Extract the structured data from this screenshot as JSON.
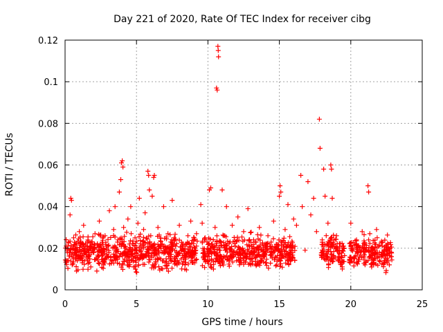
{
  "chart_data": {
    "type": "scatter",
    "title": "Day 221 of 2020, Rate Of TEC Index for receiver cibg",
    "xlabel": "GPS time / hours",
    "ylabel": "ROTI / TECUs",
    "xlim": [
      0,
      25
    ],
    "ylim": [
      0,
      0.12
    ],
    "x_ticks": [
      0,
      5,
      10,
      15,
      20,
      25
    ],
    "y_ticks": [
      0,
      0.02,
      0.04,
      0.06,
      0.08,
      0.1,
      0.12
    ],
    "x_tick_labels": [
      "0",
      "5",
      "10",
      "15",
      "20",
      "25"
    ],
    "y_tick_labels": [
      "0",
      "0.02",
      "0.04",
      "0.06",
      "0.08",
      "0.1",
      "0.12"
    ],
    "grid": true,
    "marker": "plus",
    "color": "#ff0000",
    "series": [
      {
        "points": [
          [
            0.1,
            0.014
          ],
          [
            0.2,
            0.021
          ],
          [
            0.3,
            0.018
          ],
          [
            0.35,
            0.036
          ],
          [
            0.4,
            0.044
          ],
          [
            0.45,
            0.043
          ],
          [
            0.5,
            0.012
          ],
          [
            0.6,
            0.025
          ],
          [
            0.7,
            0.019
          ],
          [
            0.8,
            0.009
          ],
          [
            0.9,
            0.016
          ],
          [
            1.0,
            0.028
          ],
          [
            1.1,
            0.022
          ],
          [
            1.2,
            0.013
          ],
          [
            1.3,
            0.031
          ],
          [
            1.5,
            0.017
          ],
          [
            1.6,
            0.024
          ],
          [
            1.8,
            0.011
          ],
          [
            2.0,
            0.02
          ],
          [
            2.1,
            0.027
          ],
          [
            2.2,
            0.015
          ],
          [
            2.4,
            0.033
          ],
          [
            2.5,
            0.018
          ],
          [
            2.7,
            0.012
          ],
          [
            2.8,
            0.026
          ],
          [
            3.0,
            0.021
          ],
          [
            3.1,
            0.038
          ],
          [
            3.2,
            0.016
          ],
          [
            3.4,
            0.029
          ],
          [
            3.5,
            0.04
          ],
          [
            3.6,
            0.019
          ],
          [
            3.7,
            0.024
          ],
          [
            3.8,
            0.047
          ],
          [
            3.9,
            0.053
          ],
          [
            3.95,
            0.061
          ],
          [
            4.0,
            0.062
          ],
          [
            4.05,
            0.059
          ],
          [
            4.1,
            0.03
          ],
          [
            4.2,
            0.02
          ],
          [
            4.3,
            0.014
          ],
          [
            4.4,
            0.034
          ],
          [
            4.5,
            0.022
          ],
          [
            4.6,
            0.04
          ],
          [
            4.7,
            0.017
          ],
          [
            4.8,
            0.011
          ],
          [
            4.9,
            0.025
          ],
          [
            5.0,
            0.019
          ],
          [
            5.1,
            0.032
          ],
          [
            5.2,
            0.044
          ],
          [
            5.3,
            0.021
          ],
          [
            5.4,
            0.015
          ],
          [
            5.5,
            0.029
          ],
          [
            5.6,
            0.037
          ],
          [
            5.8,
            0.057
          ],
          [
            5.85,
            0.055
          ],
          [
            5.9,
            0.048
          ],
          [
            6.0,
            0.026
          ],
          [
            6.1,
            0.045
          ],
          [
            6.2,
            0.054
          ],
          [
            6.25,
            0.055
          ],
          [
            6.3,
            0.018
          ],
          [
            6.5,
            0.03
          ],
          [
            6.7,
            0.021
          ],
          [
            6.9,
            0.04
          ],
          [
            7.0,
            0.013
          ],
          [
            7.2,
            0.027
          ],
          [
            7.4,
            0.019
          ],
          [
            7.5,
            0.043
          ],
          [
            7.6,
            0.024
          ],
          [
            7.8,
            0.016
          ],
          [
            8.0,
            0.031
          ],
          [
            8.2,
            0.021
          ],
          [
            8.4,
            0.012
          ],
          [
            8.6,
            0.026
          ],
          [
            8.8,
            0.033
          ],
          [
            9.0,
            0.018
          ],
          [
            9.2,
            0.027
          ],
          [
            9.5,
            0.041
          ],
          [
            9.6,
            0.032
          ],
          [
            9.7,
            0.019
          ],
          [
            9.8,
            0.025
          ],
          [
            10.0,
            0.016
          ],
          [
            10.1,
            0.048
          ],
          [
            10.2,
            0.049
          ],
          [
            10.3,
            0.022
          ],
          [
            10.5,
            0.03
          ],
          [
            10.6,
            0.097
          ],
          [
            10.65,
            0.096
          ],
          [
            10.7,
            0.117
          ],
          [
            10.72,
            0.115
          ],
          [
            10.74,
            0.112
          ],
          [
            10.8,
            0.019
          ],
          [
            11.0,
            0.048
          ],
          [
            11.1,
            0.026
          ],
          [
            11.3,
            0.04
          ],
          [
            11.5,
            0.014
          ],
          [
            11.7,
            0.031
          ],
          [
            11.9,
            0.021
          ],
          [
            12.1,
            0.035
          ],
          [
            12.3,
            0.017
          ],
          [
            12.5,
            0.028
          ],
          [
            12.8,
            0.039
          ],
          [
            13.0,
            0.012
          ],
          [
            13.2,
            0.024
          ],
          [
            13.4,
            0.019
          ],
          [
            13.6,
            0.03
          ],
          [
            13.8,
            0.015
          ],
          [
            14.0,
            0.022
          ],
          [
            14.2,
            0.026
          ],
          [
            14.4,
            0.018
          ],
          [
            14.6,
            0.033
          ],
          [
            14.8,
            0.02
          ],
          [
            15.0,
            0.045
          ],
          [
            15.05,
            0.05
          ],
          [
            15.1,
            0.047
          ],
          [
            15.2,
            0.016
          ],
          [
            15.4,
            0.029
          ],
          [
            15.6,
            0.041
          ],
          [
            15.8,
            0.021
          ],
          [
            16.0,
            0.034
          ],
          [
            16.2,
            0.031
          ],
          [
            16.5,
            0.055
          ],
          [
            16.6,
            0.04
          ],
          [
            16.8,
            0.019
          ],
          [
            17.0,
            0.052
          ],
          [
            17.2,
            0.036
          ],
          [
            17.4,
            0.044
          ],
          [
            17.6,
            0.028
          ],
          [
            17.8,
            0.082
          ],
          [
            17.85,
            0.068
          ],
          [
            18.0,
            0.024
          ],
          [
            18.1,
            0.058
          ],
          [
            18.2,
            0.045
          ],
          [
            18.4,
            0.032
          ],
          [
            18.6,
            0.06
          ],
          [
            18.65,
            0.058
          ],
          [
            18.7,
            0.044
          ],
          [
            18.8,
            0.016
          ],
          [
            19.0,
            0.026
          ],
          [
            19.2,
            0.019
          ],
          [
            19.4,
            0.011
          ],
          [
            20.0,
            0.032
          ],
          [
            20.2,
            0.015
          ],
          [
            20.4,
            0.024
          ],
          [
            20.6,
            0.02
          ],
          [
            20.8,
            0.028
          ],
          [
            21.0,
            0.012
          ],
          [
            21.2,
            0.05
          ],
          [
            21.25,
            0.047
          ],
          [
            21.5,
            0.018
          ],
          [
            21.8,
            0.029
          ],
          [
            22.0,
            0.014
          ],
          [
            22.2,
            0.021
          ],
          [
            22.6,
            0.019
          ],
          [
            22.7,
            0.012
          ]
        ]
      }
    ],
    "dense_band": {
      "segments": [
        [
          0.0,
          9.3
        ],
        [
          9.6,
          16.1
        ],
        [
          17.9,
          19.6
        ],
        [
          19.9,
          22.9
        ]
      ],
      "center": 0.018,
      "spread": 0.007
    }
  }
}
